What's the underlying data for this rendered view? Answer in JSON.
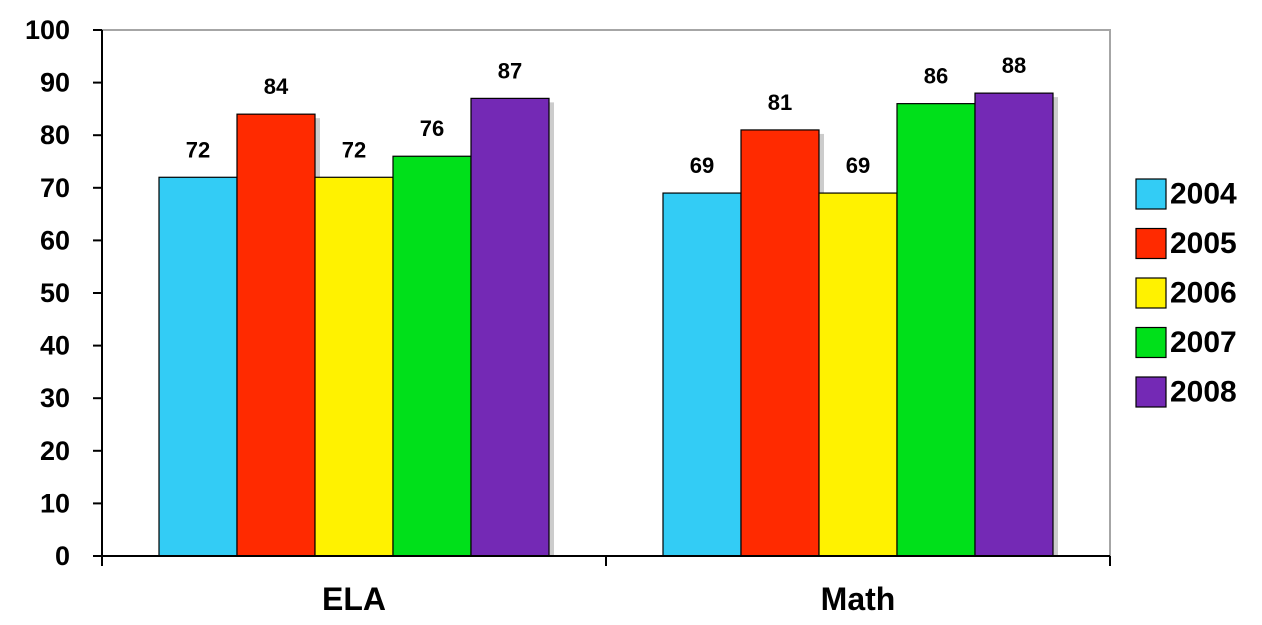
{
  "chart_data": {
    "type": "bar",
    "categories": [
      "ELA",
      "Math"
    ],
    "series": [
      {
        "name": "2004",
        "color": "#33CCF5",
        "values": [
          72,
          69
        ]
      },
      {
        "name": "2005",
        "color": "#FF2A00",
        "values": [
          84,
          81
        ]
      },
      {
        "name": "2006",
        "color": "#FFF200",
        "values": [
          72,
          69
        ]
      },
      {
        "name": "2007",
        "color": "#00E01A",
        "values": [
          76,
          86
        ]
      },
      {
        "name": "2008",
        "color": "#7429B5",
        "values": [
          87,
          88
        ]
      }
    ],
    "yticks": [
      "0",
      "10",
      "20",
      "30",
      "40",
      "50",
      "60",
      "70",
      "80",
      "90",
      "100"
    ],
    "ylim": [
      0,
      100
    ],
    "title": "",
    "xlabel": "",
    "ylabel": "",
    "legend_position": "right",
    "grid": false
  }
}
